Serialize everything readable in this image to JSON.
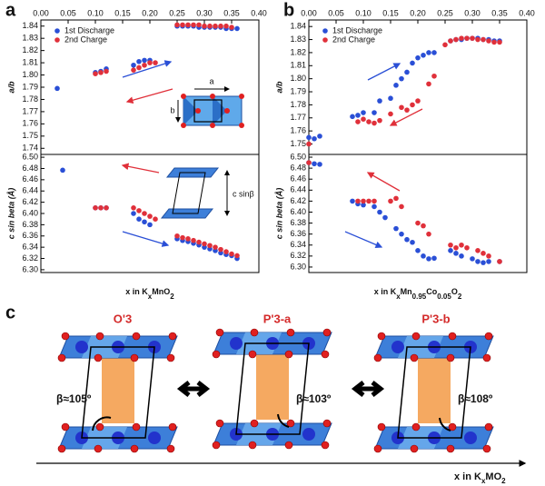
{
  "panel_labels": [
    "a",
    "b",
    "c"
  ],
  "insets": [
    "a",
    "b",
    "c sinβ"
  ],
  "chart_data": [
    {
      "type": "scatter",
      "ylabel": "a/b",
      "xlim": [
        0,
        0.4
      ],
      "ylim": [
        1.735,
        1.845
      ],
      "xticks": [
        {
          "value": 0,
          "label": "0.00"
        },
        0.05,
        {
          "value": 0.1,
          "label": "0.10"
        },
        0.15,
        {
          "value": 0.2,
          "label": "0.20"
        },
        0.25,
        {
          "value": 0.3,
          "label": "0.30"
        },
        0.35,
        {
          "value": 0.4,
          "label": "0.40"
        }
      ],
      "yticks": [
        1.74,
        1.75,
        1.76,
        1.77,
        1.78,
        1.79,
        {
          "value": 1.8,
          "label": "1.80"
        },
        1.81,
        1.82,
        1.83,
        1.84
      ],
      "series": [
        {
          "name": "1st Discharge",
          "color": "#2a4fd6",
          "x": [
            0.03,
            0.1,
            0.11,
            0.12,
            0.17,
            0.18,
            0.19,
            0.2,
            0.25,
            0.26,
            0.27,
            0.28,
            0.29,
            0.3,
            0.31,
            0.32,
            0.33,
            0.34,
            0.35,
            0.36
          ],
          "values": [
            1.789,
            1.802,
            1.803,
            1.805,
            1.808,
            1.811,
            1.812,
            1.812,
            1.84,
            1.84,
            1.84,
            1.84,
            1.839,
            1.839,
            1.839,
            1.839,
            1.839,
            1.838,
            1.838,
            1.838
          ]
        },
        {
          "name": "2nd Charge",
          "color": "#e0303a",
          "x": [
            0.1,
            0.11,
            0.12,
            0.17,
            0.18,
            0.19,
            0.2,
            0.21,
            0.25,
            0.26,
            0.27,
            0.28,
            0.29,
            0.3,
            0.31,
            0.32,
            0.33,
            0.34,
            0.35
          ],
          "values": [
            1.801,
            1.802,
            1.803,
            1.804,
            1.806,
            1.808,
            1.81,
            1.81,
            1.841,
            1.841,
            1.841,
            1.841,
            1.841,
            1.84,
            1.84,
            1.84,
            1.84,
            1.84,
            1.839
          ]
        }
      ]
    },
    {
      "type": "scatter",
      "ylabel": "c sin beta (Å)",
      "xlabel": [
        "x in K",
        "x",
        "MnO",
        "2"
      ],
      "xlim": [
        0,
        0.4
      ],
      "ylim": [
        6.295,
        6.505
      ],
      "yticks": [
        {
          "value": 6.3,
          "label": "6.30"
        },
        6.32,
        6.34,
        6.36,
        6.38,
        {
          "value": 6.4,
          "label": "6.40"
        },
        6.42,
        6.44,
        6.46,
        6.48,
        {
          "value": 6.5,
          "label": "6.50"
        }
      ],
      "series": [
        {
          "color": "#2a4fd6",
          "x": [
            0.04,
            0.1,
            0.11,
            0.12,
            0.17,
            0.18,
            0.19,
            0.2,
            0.25,
            0.26,
            0.27,
            0.28,
            0.29,
            0.3,
            0.31,
            0.32,
            0.33,
            0.34,
            0.35,
            0.36
          ],
          "values": [
            6.477,
            6.41,
            6.41,
            6.41,
            6.4,
            6.39,
            6.385,
            6.38,
            6.355,
            6.352,
            6.35,
            6.347,
            6.344,
            6.34,
            6.337,
            6.334,
            6.33,
            6.327,
            6.325,
            6.32
          ]
        },
        {
          "color": "#e0303a",
          "x": [
            0.1,
            0.11,
            0.12,
            0.17,
            0.18,
            0.19,
            0.2,
            0.21,
            0.25,
            0.26,
            0.27,
            0.28,
            0.29,
            0.3,
            0.31,
            0.32,
            0.33,
            0.34,
            0.35,
            0.36
          ],
          "values": [
            6.41,
            6.41,
            6.41,
            6.41,
            6.405,
            6.4,
            6.395,
            6.39,
            6.36,
            6.357,
            6.355,
            6.352,
            6.349,
            6.346,
            6.343,
            6.34,
            6.336,
            6.332,
            6.328,
            6.325
          ]
        }
      ]
    },
    {
      "type": "scatter",
      "ylabel": "a/b",
      "xlim": [
        0,
        0.4
      ],
      "ylim": [
        1.742,
        1.845
      ],
      "xticks": [
        {
          "value": 0,
          "label": "0.00"
        },
        0.05,
        {
          "value": 0.1,
          "label": "0.10"
        },
        0.15,
        {
          "value": 0.2,
          "label": "0.20"
        },
        0.25,
        {
          "value": 0.3,
          "label": "0.30"
        },
        0.35,
        {
          "value": 0.4,
          "label": "0.40"
        }
      ],
      "yticks": [
        1.75,
        1.76,
        1.77,
        1.78,
        1.79,
        {
          "value": 1.8,
          "label": "1.80"
        },
        1.81,
        1.82,
        1.83,
        1.84
      ],
      "series": [
        {
          "name": "1st Discharge",
          "color": "#2a4fd6",
          "x": [
            0,
            0.01,
            0.02,
            0.08,
            0.09,
            0.1,
            0.12,
            0.13,
            0.15,
            0.16,
            0.17,
            0.18,
            0.19,
            0.2,
            0.21,
            0.22,
            0.23,
            0.26,
            0.27,
            0.28,
            0.29,
            0.3,
            0.31,
            0.32,
            0.33,
            0.34,
            0.35
          ],
          "values": [
            1.755,
            1.754,
            1.756,
            1.771,
            1.772,
            1.774,
            1.774,
            1.783,
            1.785,
            1.795,
            1.8,
            1.805,
            1.812,
            1.816,
            1.818,
            1.82,
            1.82,
            1.829,
            1.83,
            1.83,
            1.831,
            1.831,
            1.831,
            1.83,
            1.83,
            1.829,
            1.829
          ]
        },
        {
          "name": "2nd Charge",
          "color": "#e0303a",
          "x": [
            0,
            0.09,
            0.1,
            0.11,
            0.12,
            0.13,
            0.15,
            0.17,
            0.18,
            0.19,
            0.2,
            0.22,
            0.23,
            0.25,
            0.26,
            0.27,
            0.28,
            0.29,
            0.3,
            0.31,
            0.32,
            0.33,
            0.34,
            0.35
          ],
          "values": [
            1.75,
            1.767,
            1.769,
            1.767,
            1.766,
            1.768,
            1.773,
            1.778,
            1.776,
            1.78,
            1.783,
            1.796,
            1.802,
            1.826,
            1.829,
            1.83,
            1.831,
            1.831,
            1.831,
            1.83,
            1.83,
            1.829,
            1.828,
            1.828
          ]
        }
      ]
    },
    {
      "type": "scatter",
      "ylabel": "c sin beta (Å)",
      "xlabel": [
        "x in K",
        "x",
        "Mn",
        "0.95",
        "Co",
        "0.05",
        "O",
        "2"
      ],
      "xlim": [
        0,
        0.4
      ],
      "ylim": [
        6.29,
        6.505
      ],
      "yticks": [
        {
          "value": 6.3,
          "label": "6.30"
        },
        6.32,
        6.34,
        6.36,
        6.38,
        {
          "value": 6.4,
          "label": "6.40"
        },
        6.42,
        6.44,
        6.46,
        6.48,
        {
          "value": 6.5,
          "label": "6.50"
        }
      ],
      "series": [
        {
          "color": "#2a4fd6",
          "x": [
            0,
            0.01,
            0.02,
            0.08,
            0.09,
            0.1,
            0.12,
            0.13,
            0.14,
            0.16,
            0.17,
            0.18,
            0.19,
            0.2,
            0.21,
            0.22,
            0.23,
            0.26,
            0.27,
            0.28,
            0.3,
            0.31,
            0.32,
            0.33,
            0.35
          ],
          "values": [
            6.49,
            6.488,
            6.487,
            6.42,
            6.415,
            6.413,
            6.41,
            6.4,
            6.39,
            6.37,
            6.36,
            6.35,
            6.345,
            6.33,
            6.32,
            6.315,
            6.316,
            6.33,
            6.325,
            6.32,
            6.315,
            6.31,
            6.308,
            6.31,
            6.31
          ]
        },
        {
          "color": "#e0303a",
          "x": [
            0,
            0.09,
            0.1,
            0.11,
            0.12,
            0.15,
            0.16,
            0.17,
            0.2,
            0.21,
            0.22,
            0.26,
            0.27,
            0.28,
            0.29,
            0.31,
            0.32,
            0.33,
            0.35
          ],
          "values": [
            6.49,
            6.42,
            6.42,
            6.42,
            6.42,
            6.42,
            6.425,
            6.41,
            6.38,
            6.375,
            6.36,
            6.34,
            6.335,
            6.34,
            6.335,
            6.33,
            6.325,
            6.32,
            6.31
          ]
        }
      ]
    }
  ],
  "diagram": {
    "structures": [
      "O'3",
      "P'3-a",
      "P'3-b"
    ],
    "angles": [
      "β≈105º",
      "β≈103º",
      "β≈108º"
    ],
    "axis_label": [
      "x in K",
      "x",
      "MO",
      "2"
    ]
  }
}
